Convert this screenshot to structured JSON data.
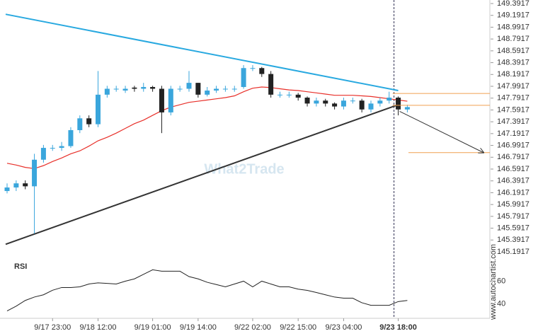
{
  "chart_data": {
    "type": "candlestick",
    "watermark": "What2Trade",
    "source": "www.autochartist.com",
    "categories": [
      null,
      null,
      null,
      null,
      null,
      "9/17 23:00",
      null,
      null,
      null,
      null,
      "9/18 12:00",
      null,
      null,
      null,
      null,
      null,
      "9/19 01:00",
      null,
      null,
      null,
      null,
      "9/19 14:00",
      null,
      null,
      null,
      null,
      null,
      "9/22 02:00",
      null,
      null,
      null,
      null,
      "9/22 15:00",
      null,
      null,
      null,
      null,
      "9/23 04:00",
      null,
      null,
      null,
      null,
      null,
      "9/23 18:00",
      null
    ],
    "open": [
      146.22,
      146.28,
      146.35,
      146.3,
      146.75,
      146.95,
      146.95,
      146.98,
      147.25,
      147.45,
      147.35,
      147.85,
      147.95,
      147.92,
      147.97,
      147.95,
      147.98,
      147.95,
      147.55,
      147.95,
      147.95,
      148.05,
      147.85,
      147.92,
      147.95,
      147.95,
      147.98,
      148.3,
      148.3,
      148.2,
      147.85,
      147.85,
      147.85,
      147.8,
      147.7,
      147.75,
      147.7,
      147.65,
      147.75,
      147.75,
      147.6,
      147.7,
      147.75,
      147.8,
      147.6
    ],
    "high": [
      146.35,
      146.4,
      146.4,
      146.85,
      147.0,
      147.0,
      147.05,
      147.3,
      147.5,
      147.5,
      148.25,
      148.0,
      148.0,
      148.0,
      148.0,
      148.05,
      148.0,
      148.0,
      148.0,
      148.0,
      148.25,
      148.05,
      147.98,
      148.0,
      148.0,
      148.0,
      148.35,
      148.35,
      148.32,
      148.25,
      147.9,
      147.9,
      147.88,
      147.82,
      147.8,
      147.78,
      147.72,
      147.8,
      147.8,
      147.78,
      147.75,
      147.8,
      147.9,
      147.82,
      147.68
    ],
    "low": [
      146.18,
      146.22,
      146.25,
      145.5,
      146.7,
      146.9,
      146.9,
      146.95,
      147.2,
      147.3,
      147.3,
      147.8,
      147.9,
      147.88,
      147.9,
      147.9,
      147.9,
      147.2,
      147.5,
      147.9,
      147.9,
      147.8,
      147.82,
      147.88,
      147.9,
      147.9,
      147.95,
      148.25,
      148.15,
      147.8,
      147.8,
      147.8,
      147.75,
      147.65,
      147.65,
      147.65,
      147.6,
      147.6,
      147.7,
      147.55,
      147.55,
      147.65,
      147.7,
      147.5,
      147.55
    ],
    "close": [
      146.28,
      146.35,
      146.3,
      146.75,
      146.95,
      146.95,
      146.98,
      147.25,
      147.45,
      147.35,
      147.85,
      147.95,
      147.95,
      147.95,
      147.95,
      147.98,
      147.95,
      147.55,
      147.95,
      147.95,
      148.05,
      147.85,
      147.92,
      147.95,
      147.95,
      147.95,
      148.3,
      148.3,
      148.2,
      147.85,
      147.85,
      147.85,
      147.8,
      147.7,
      147.75,
      147.7,
      147.65,
      147.75,
      147.75,
      147.6,
      147.7,
      147.75,
      147.8,
      147.6,
      147.64
    ],
    "up_color": "#3aa6dc",
    "down_color": "#222222",
    "moving_average": {
      "color": "#e8302a",
      "values": [
        146.69,
        146.66,
        146.62,
        146.6,
        146.65,
        146.72,
        146.78,
        146.85,
        146.9,
        146.98,
        147.07,
        147.13,
        147.2,
        147.28,
        147.36,
        147.42,
        147.5,
        147.58,
        147.64,
        147.68,
        147.72,
        147.74,
        147.76,
        147.78,
        147.8,
        147.83,
        147.9,
        147.96,
        147.98,
        147.97,
        147.95,
        147.93,
        147.92,
        147.9,
        147.88,
        147.86,
        147.84,
        147.84,
        147.84,
        147.83,
        147.82,
        147.8,
        147.78,
        147.76,
        147.74
      ]
    },
    "trendlines": [
      {
        "color": "#29a9e0",
        "values": [
          149.21,
          147.92
        ]
      },
      {
        "color": "#333333",
        "values": [
          145.32,
          147.68
        ]
      }
    ],
    "levels": {
      "color": "#f0a050",
      "values": [
        147.87,
        147.67
      ]
    },
    "target": {
      "color": "#f0a050",
      "value": 146.87
    },
    "ylim": [
      145.1917,
      149.3917
    ],
    "yticks": [
      149.3917,
      149.1917,
      148.9917,
      148.7917,
      148.5917,
      148.3917,
      148.1917,
      147.9917,
      147.7917,
      147.5917,
      147.3917,
      147.1917,
      146.9917,
      146.7917,
      146.5917,
      146.3917,
      146.1917,
      145.9917,
      145.7917,
      145.5917,
      145.3917,
      145.1917
    ],
    "rsi": {
      "label": "RSI",
      "color": "#222222",
      "values": [
        33.75,
        38,
        43,
        46,
        48,
        52,
        54.4,
        54.4,
        55,
        57.5,
        58.5,
        58,
        57.5,
        60,
        62,
        66,
        70,
        68.75,
        68.75,
        68.75,
        64,
        62,
        59,
        57,
        55,
        57.5,
        60,
        55,
        60,
        57.5,
        55,
        55,
        53,
        51.9,
        50,
        48,
        46,
        45,
        45,
        41,
        38.75,
        38.75,
        38.75,
        42,
        43
      ],
      "ylim": [
        31,
        74
      ],
      "yticks": [
        40,
        60
      ]
    }
  }
}
